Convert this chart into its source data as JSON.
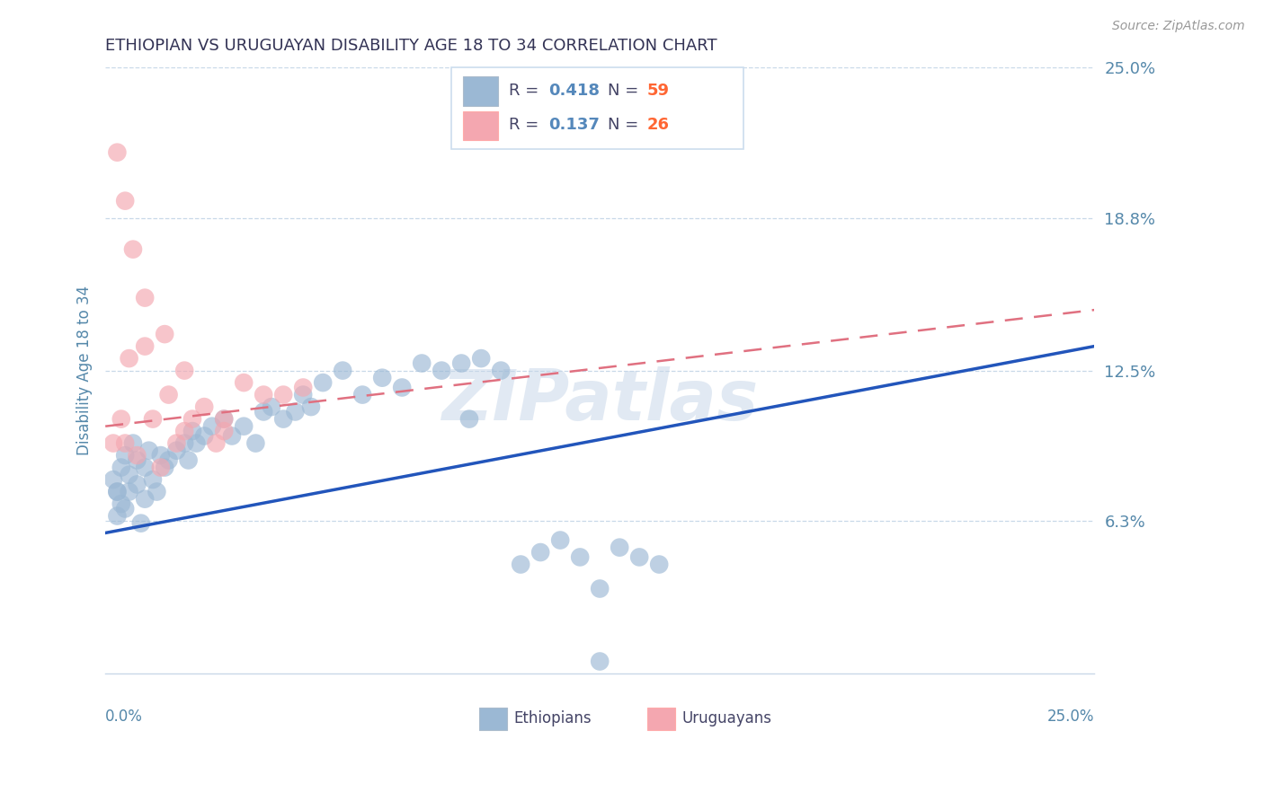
{
  "title": "ETHIOPIAN VS URUGUAYAN DISABILITY AGE 18 TO 34 CORRELATION CHART",
  "source": "Source: ZipAtlas.com",
  "ylabel": "Disability Age 18 to 34",
  "xlim": [
    0.0,
    25.0
  ],
  "ylim": [
    0.0,
    25.0
  ],
  "yticks": [
    6.3,
    12.5,
    18.8,
    25.0
  ],
  "ytick_labels": [
    "6.3%",
    "12.5%",
    "18.8%",
    "25.0%"
  ],
  "R_ethiopian": 0.418,
  "N_ethiopian": 59,
  "R_uruguayan": 0.137,
  "N_uruguayan": 26,
  "ethiopian_color": "#9BB8D4",
  "uruguayan_color": "#F4A7B0",
  "ethiopian_line_color": "#2255BB",
  "uruguayan_line_color": "#E07080",
  "background_color": "#FFFFFF",
  "grid_color": "#C8D8E8",
  "title_color": "#333355",
  "axis_label_color": "#5588AA",
  "legend_text_color": "#444466",
  "legend_value_color": "#5588BB",
  "legend_n_color": "#FF6633",
  "watermark_color": "#C5D5E8",
  "eth_line_start_y": 5.8,
  "eth_line_end_y": 13.5,
  "uru_line_start_y": 10.2,
  "uru_line_end_y": 15.0
}
